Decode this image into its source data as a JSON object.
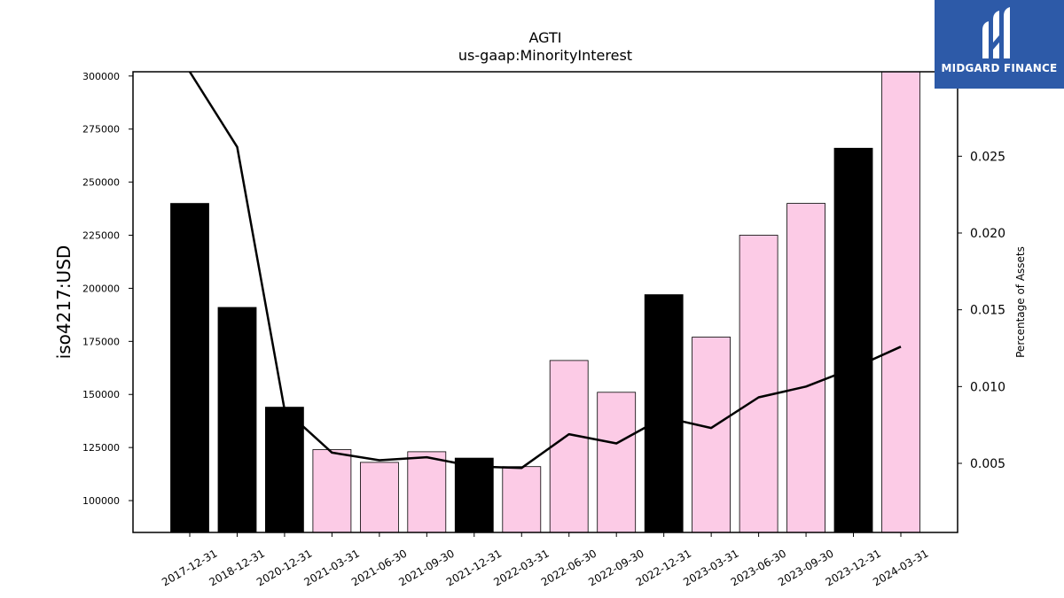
{
  "chart_data": {
    "type": "bar",
    "title": "AGTI",
    "subtitle": "us-gaap:MinorityInterest",
    "ylabel": "iso4217:USD",
    "ylabel_right": "Percentage of Assets",
    "ylim": [
      85000,
      302000
    ],
    "ylim_right": [
      0.0005,
      0.0305
    ],
    "yticks": [
      100000,
      125000,
      150000,
      175000,
      200000,
      225000,
      250000,
      275000,
      300000
    ],
    "yticks_right": [
      0.005,
      0.01,
      0.015,
      0.02,
      0.025
    ],
    "yticks_right_labels": [
      "0.005",
      "0.010",
      "0.015",
      "0.020",
      "0.025"
    ],
    "grid": false,
    "categories": [
      "2017-12-31",
      "2018-12-31",
      "2020-12-31",
      "2021-03-31",
      "2021-06-30",
      "2021-09-30",
      "2021-12-31",
      "2022-03-31",
      "2022-06-30",
      "2022-09-30",
      "2022-12-31",
      "2023-03-31",
      "2023-06-30",
      "2023-09-30",
      "2023-12-31",
      "2024-03-31"
    ],
    "series": [
      {
        "type": "bar",
        "axis": "left",
        "values": [
          240000,
          191000,
          144000,
          124000,
          118000,
          123000,
          120000,
          116000,
          166000,
          151000,
          197000,
          177000,
          225000,
          240000,
          266000,
          302000
        ],
        "colors": [
          "#000000",
          "#000000",
          "#000000",
          "#fccbe6",
          "#fccbe6",
          "#fccbe6",
          "#000000",
          "#fccbe6",
          "#fccbe6",
          "#fccbe6",
          "#000000",
          "#fccbe6",
          "#fccbe6",
          "#fccbe6",
          "#000000",
          "#fccbe6"
        ]
      },
      {
        "type": "line",
        "axis": "right",
        "color": "#000000",
        "values": [
          0.0305,
          0.0256,
          0.0085,
          0.0057,
          0.0052,
          0.0054,
          0.0048,
          0.0047,
          0.0069,
          0.0063,
          0.008,
          0.0073,
          0.0093,
          0.01,
          0.0112,
          0.0126
        ]
      }
    ]
  },
  "logo": {
    "text": "MIDGARD FINANCE",
    "background": "#2d5aa8",
    "icon": "midgard-logo-icon"
  }
}
